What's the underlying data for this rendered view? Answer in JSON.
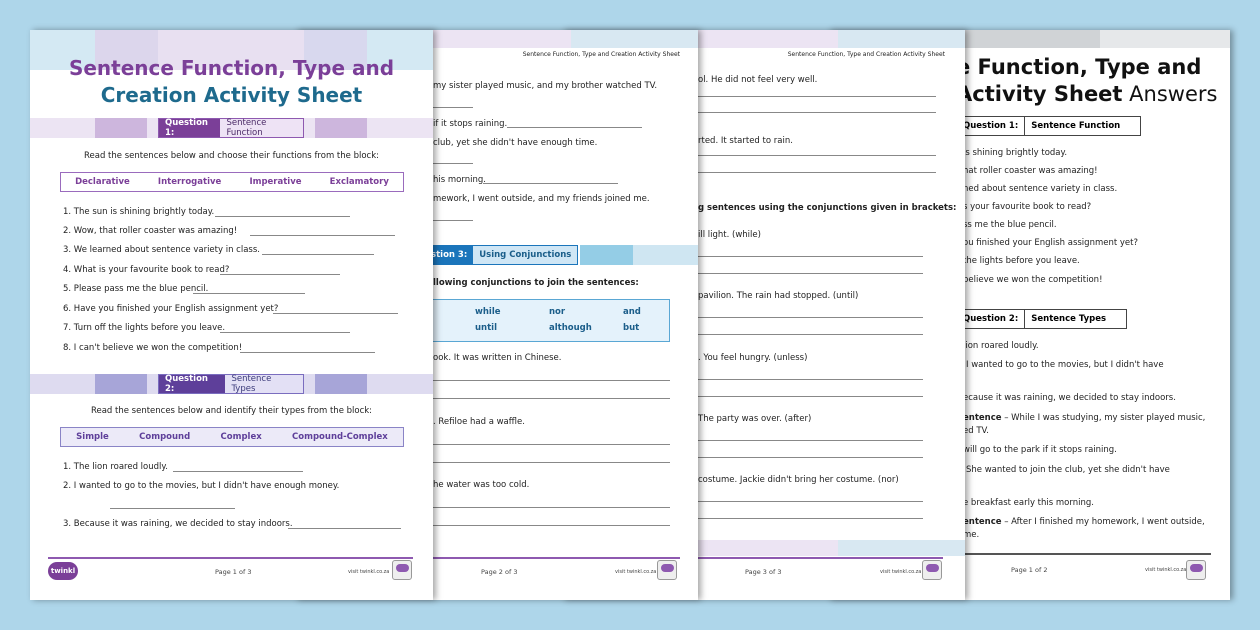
{
  "colors": {
    "background": "#aed6ea",
    "purple": "#7b3f98",
    "teal": "#1e6a8d",
    "blue": "#1b75bb"
  },
  "page1": {
    "title_line1": "Sentence Function, Type and",
    "title_line2": "Creation Activity Sheet",
    "q1": {
      "label": "Question 1:",
      "title": "Sentence Function",
      "instruction": "Read the sentences below and choose their functions from the block:",
      "options": [
        "Declarative",
        "Interrogative",
        "Imperative",
        "Exclamatory"
      ],
      "items": [
        "1. The sun is shining brightly today.",
        "2. Wow, that roller coaster was amazing!",
        "3. We learned about sentence variety in class.",
        "4. What is your favourite book to read?",
        "5. Please pass me the blue pencil.",
        "6. Have you finished your English assignment yet?",
        "7. Turn off the lights before you leave.",
        "8. I can't believe we won the competition!"
      ]
    },
    "q2": {
      "label": "Question 2:",
      "title": "Sentence Types",
      "instruction": "Read the sentences below and identify their types from the block:",
      "options": [
        "Simple",
        "Compound",
        "Complex",
        "Compound-Complex"
      ],
      "items": [
        "1. The lion roared loudly.",
        "2. I wanted to go to the movies, but I didn't have enough money.",
        "3. Because it was raining, we decided to stay indoors."
      ]
    },
    "logo": "twinkl",
    "page_number": "Page 1 of 3",
    "website": "visit twinkl.co.za"
  },
  "page2": {
    "header": "Sentence Function, Type and Creation Activity Sheet",
    "lines": [
      "my sister played music, and my brother watched TV.",
      "if it stops raining.",
      "club, yet she didn't have enough time.",
      "his morning.",
      "mework, I went outside, and my friends joined me."
    ],
    "q3": {
      "label": "Question 3:",
      "title": "Using Conjunctions",
      "instruction": "llowing conjunctions to join the sentences:",
      "conjunctions": [
        "while",
        "nor",
        "and",
        "until",
        "although",
        "but"
      ],
      "items": [
        "ook. It was written in Chinese.",
        ". Refiloe had a waffle.",
        "he water was too cold."
      ]
    },
    "page_number": "Page 2 of 3",
    "website": "visit twinkl.co.za"
  },
  "page3": {
    "header": "Sentence Function, Type and Creation Activity Sheet",
    "items_a": [
      "ol. He did not feel very well.",
      "rted. It started to rain."
    ],
    "instruction": "g sentences using the conjunctions given in brackets:",
    "items_b": [
      "ill light. (while)",
      "pavilion. The rain had stopped. (until)",
      ". You feel hungry. (unless)",
      "The party was over. (after)",
      "costume. Jackie didn't bring her costume. (nor)"
    ],
    "page_number": "Page 3 of 3",
    "website": "visit twinkl.co.za"
  },
  "page4": {
    "title_line1": "e Function, Type and",
    "title_line2_bold": "Activity Sheet",
    "title_line2_light": "Answers",
    "q1": {
      "label": "Question 1:",
      "title": "Sentence Function",
      "items": [
        "is shining brightly today.",
        "hat roller coaster was amazing!",
        "ned about sentence variety in class.",
        "s your favourite book to read?",
        "ss me the blue pencil.",
        "ou finished your English assignment yet?",
        "the lights before you leave.",
        "believe we won the competition!"
      ]
    },
    "q2": {
      "label": "Question 2:",
      "title": "Sentence Types",
      "items": [
        "lion roared loudly.",
        "I wanted to go to the movies, but I didn't have",
        "ecause it was raining, we decided to stay indoors.",
        "entence",
        "– While I was studying, my sister played music,",
        "ed TV.",
        "will go to the park if it stops raining.",
        "She wanted to join the club, yet she didn't have",
        "e breakfast early this morning.",
        "entence",
        "– After I finished my homework, I went outside,",
        "me."
      ]
    },
    "page_number": "Page 1 of 2",
    "website": "visit twinkl.co.za"
  }
}
